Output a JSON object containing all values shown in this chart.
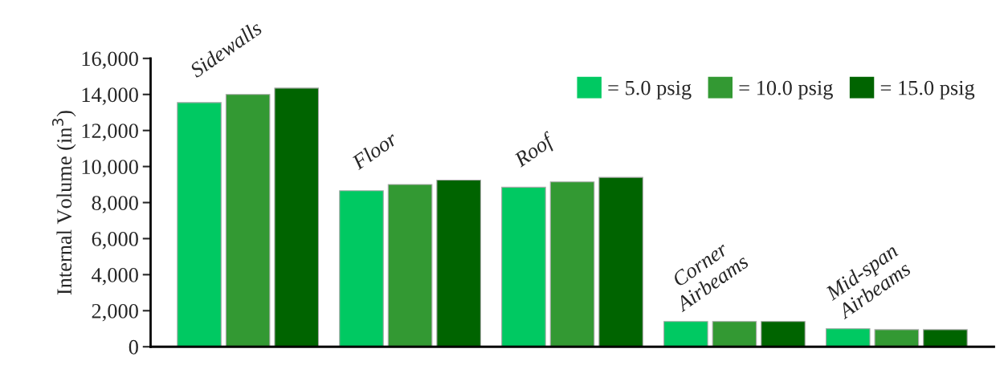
{
  "chart_data": {
    "type": "bar",
    "ylabel": "Internal Volume (in$^{3}$)",
    "categories": [
      "Sidewalls",
      "Floor",
      "Roof",
      "Corner\nAirbeams",
      "Mid-span\nAirbeams"
    ],
    "series": [
      {
        "name": "= 5.0 psig",
        "color": "#00c962",
        "values": [
          13550,
          8660,
          8850,
          1400,
          1000
        ]
      },
      {
        "name": "= 10.0 psig",
        "color": "#339933",
        "values": [
          14000,
          9000,
          9150,
          1400,
          950
        ]
      },
      {
        "name": "= 15.0 psig",
        "color": "#006400",
        "values": [
          14350,
          9250,
          9400,
          1400,
          950
        ]
      }
    ],
    "ylim": [
      0,
      16000
    ],
    "yticks": [
      {
        "value": 0,
        "label": "0"
      },
      {
        "value": 2000,
        "label": "2,000"
      },
      {
        "value": 4000,
        "label": "4,000"
      },
      {
        "value": 6000,
        "label": "6,000"
      },
      {
        "value": 8000,
        "label": "8,000"
      },
      {
        "value": 10000,
        "label": "10,000"
      },
      {
        "value": 12000,
        "label": "12,000"
      },
      {
        "value": 14000,
        "label": "14,000"
      },
      {
        "value": 16000,
        "label": "16,000"
      }
    ],
    "grid": false,
    "legend": "top right"
  }
}
